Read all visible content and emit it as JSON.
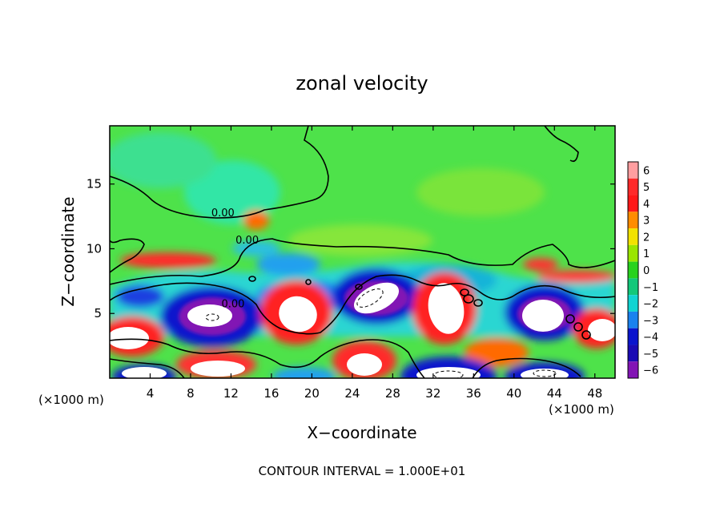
{
  "chart_data": {
    "type": "heatmap",
    "title": "zonal velocity",
    "xlabel": "X−coordinate",
    "ylabel": "Z−coordinate",
    "x_unit_left": "(×1000 m)",
    "x_unit_right": "(×1000 m)",
    "xlim": [
      0,
      50
    ],
    "ylim": [
      0,
      19.5
    ],
    "x_ticks": [
      4,
      8,
      12,
      16,
      20,
      24,
      28,
      32,
      36,
      40,
      44,
      48
    ],
    "x_tick_labels": [
      "4",
      "8",
      "12",
      "16",
      "20",
      "24",
      "28",
      "32",
      "36",
      "40",
      "44",
      "48"
    ],
    "y_ticks": [
      5,
      10,
      15
    ],
    "y_tick_labels": [
      "5",
      "10",
      "15"
    ],
    "colorbar": {
      "levels": [
        6,
        5,
        4,
        3,
        2,
        1,
        0,
        -1,
        -2,
        -3,
        -4,
        -5,
        -6
      ],
      "labels": [
        "6",
        "5",
        "4",
        "3",
        "2",
        "1",
        "0",
        "−1",
        "−2",
        "−3",
        "−4",
        "−5",
        "−6"
      ],
      "colors": [
        "#ff9ea0",
        "#ff2a2a",
        "#ff1818",
        "#ff8c00",
        "#f2e200",
        "#9ae600",
        "#28d21e",
        "#12c87a",
        "#10d4d2",
        "#1a82ee",
        "#0a14cd",
        "#1a0ab4",
        "#8214b4"
      ]
    },
    "contour_labels": [
      {
        "x": 11.2,
        "y": 12.8,
        "text": "0.00"
      },
      {
        "x": 13.6,
        "y": 10.7,
        "text": "0.00"
      },
      {
        "x": 12.2,
        "y": 5.8,
        "text": "0.00"
      }
    ],
    "footer": "CONTOUR INTERVAL = 1.000E+01",
    "grid": false,
    "legend": "right"
  }
}
